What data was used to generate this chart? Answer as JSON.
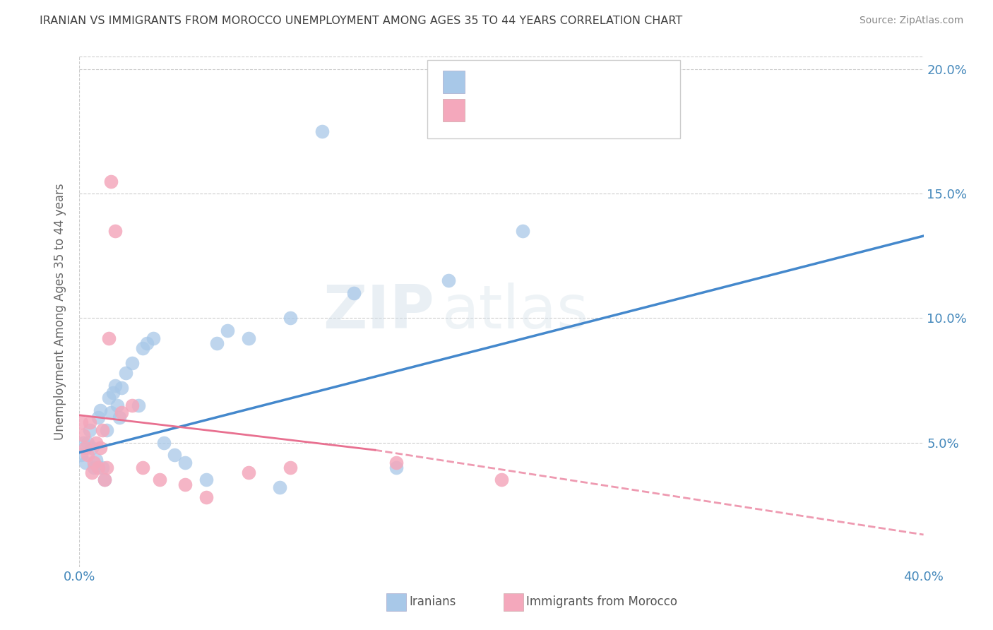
{
  "title": "IRANIAN VS IMMIGRANTS FROM MOROCCO UNEMPLOYMENT AMONG AGES 35 TO 44 YEARS CORRELATION CHART",
  "source": "Source: ZipAtlas.com",
  "ylabel": "Unemployment Among Ages 35 to 44 years",
  "xlim": [
    0.0,
    0.4
  ],
  "ylim": [
    0.0,
    0.205
  ],
  "xtick_pos": [
    0.0,
    0.05,
    0.1,
    0.15,
    0.2,
    0.25,
    0.3,
    0.35,
    0.4
  ],
  "xtick_labels": [
    "0.0%",
    "",
    "",
    "",
    "",
    "",
    "",
    "",
    "40.0%"
  ],
  "ytick_pos": [
    0.0,
    0.05,
    0.1,
    0.15,
    0.2
  ],
  "ytick_labels_right": [
    "",
    "5.0%",
    "10.0%",
    "15.0%",
    "20.0%"
  ],
  "watermark": "ZIPatlas",
  "blue_color": "#a8c8e8",
  "pink_color": "#f4a8bc",
  "blue_line_color": "#4488cc",
  "pink_line_color": "#e87090",
  "axis_color": "#4488bb",
  "iranians_x": [
    0.001,
    0.002,
    0.003,
    0.004,
    0.005,
    0.006,
    0.007,
    0.008,
    0.009,
    0.01,
    0.011,
    0.012,
    0.013,
    0.014,
    0.015,
    0.016,
    0.017,
    0.018,
    0.019,
    0.02,
    0.022,
    0.025,
    0.028,
    0.03,
    0.032,
    0.035,
    0.04,
    0.045,
    0.05,
    0.06,
    0.065,
    0.07,
    0.08,
    0.095,
    0.1,
    0.115,
    0.13,
    0.15,
    0.175,
    0.21
  ],
  "iranians_y": [
    0.045,
    0.05,
    0.042,
    0.05,
    0.055,
    0.048,
    0.04,
    0.043,
    0.06,
    0.063,
    0.04,
    0.035,
    0.055,
    0.068,
    0.062,
    0.07,
    0.073,
    0.065,
    0.06,
    0.072,
    0.078,
    0.082,
    0.065,
    0.088,
    0.09,
    0.092,
    0.05,
    0.045,
    0.042,
    0.035,
    0.09,
    0.095,
    0.092,
    0.032,
    0.1,
    0.175,
    0.11,
    0.04,
    0.115,
    0.135
  ],
  "morocco_x": [
    0.001,
    0.002,
    0.003,
    0.004,
    0.005,
    0.006,
    0.007,
    0.008,
    0.009,
    0.01,
    0.011,
    0.012,
    0.013,
    0.014,
    0.015,
    0.017,
    0.02,
    0.025,
    0.03,
    0.038,
    0.05,
    0.06,
    0.08,
    0.1,
    0.15,
    0.2
  ],
  "morocco_y": [
    0.058,
    0.053,
    0.048,
    0.045,
    0.058,
    0.038,
    0.042,
    0.05,
    0.04,
    0.048,
    0.055,
    0.035,
    0.04,
    0.092,
    0.155,
    0.135,
    0.062,
    0.065,
    0.04,
    0.035,
    0.033,
    0.028,
    0.038,
    0.04,
    0.042,
    0.035
  ],
  "blue_line_x0": 0.0,
  "blue_line_y0": 0.046,
  "blue_line_x1": 0.4,
  "blue_line_y1": 0.133,
  "pink_line_solid_x0": 0.0,
  "pink_line_solid_y0": 0.061,
  "pink_line_solid_x1": 0.14,
  "pink_line_solid_y1": 0.047,
  "pink_line_dash_x0": 0.14,
  "pink_line_dash_y0": 0.047,
  "pink_line_dash_x1": 0.4,
  "pink_line_dash_y1": 0.013
}
